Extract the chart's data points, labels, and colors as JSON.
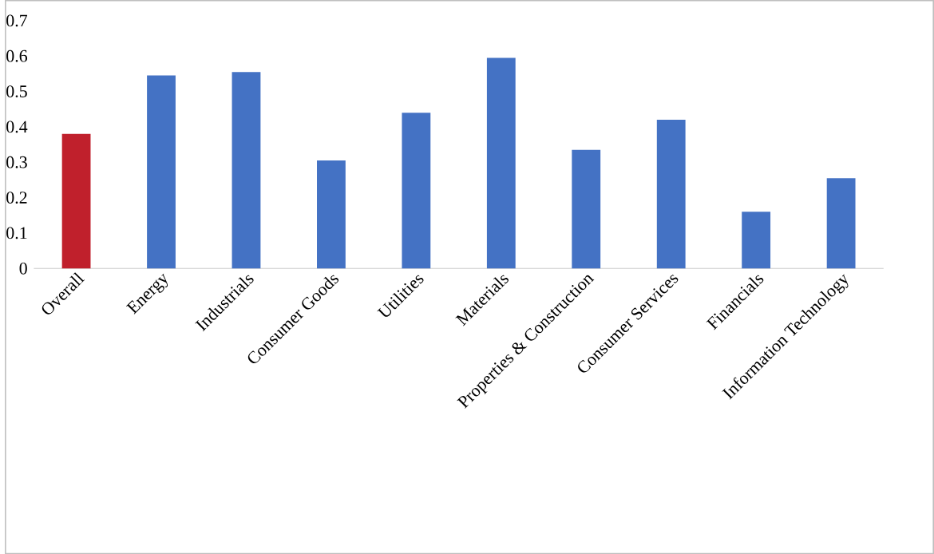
{
  "chart_data": {
    "type": "bar",
    "categories": [
      "Overall",
      "Energy",
      "Industrials",
      "Consumer Goods",
      "Utilities",
      "Materials",
      "Properties & Construction",
      "Consumer Services",
      "Financials",
      "Information Technology"
    ],
    "values": [
      0.38,
      0.545,
      0.555,
      0.305,
      0.44,
      0.595,
      0.335,
      0.42,
      0.16,
      0.255
    ],
    "colors": [
      "#c0202c",
      "#4472c4",
      "#4472c4",
      "#4472c4",
      "#4472c4",
      "#4472c4",
      "#4472c4",
      "#4472c4",
      "#4472c4",
      "#4472c4"
    ],
    "ylim": [
      0,
      0.7
    ],
    "yticks": [
      0,
      0.1,
      0.2,
      0.3,
      0.4,
      0.5,
      0.6,
      0.7
    ]
  }
}
